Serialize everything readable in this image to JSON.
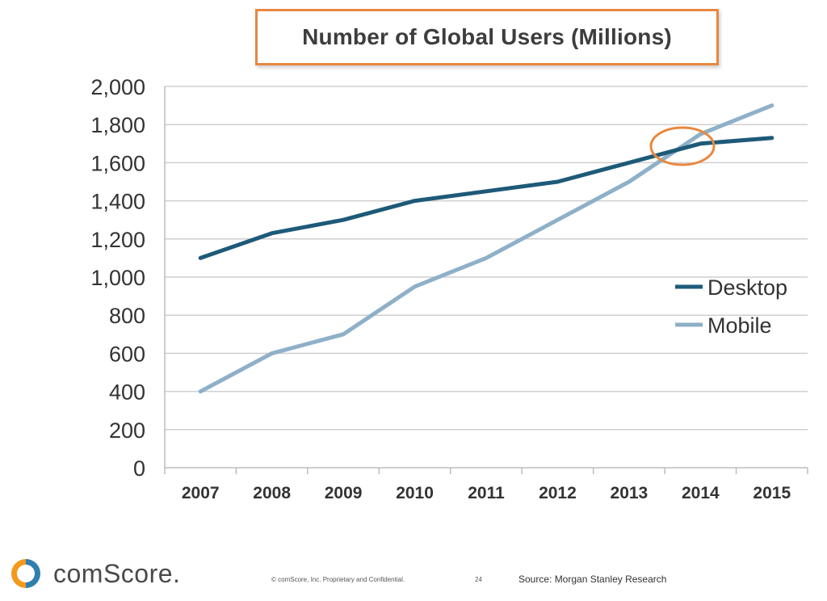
{
  "title": "Number of Global Users (Millions)",
  "colors": {
    "desktop": "#1e5a78",
    "mobile": "#8eb0c8",
    "highlight": "#e9873f",
    "grid": "#cfcfcf"
  },
  "chart_data": {
    "type": "line",
    "title": "Number of Global Users (Millions)",
    "x": [
      "2007",
      "2008",
      "2009",
      "2010",
      "2011",
      "2012",
      "2013",
      "2014",
      "2015"
    ],
    "y_ticks": [
      "0",
      "200",
      "400",
      "600",
      "800",
      "1,000",
      "1,200",
      "1,400",
      "1,600",
      "1,800",
      "2,000"
    ],
    "ylim": [
      0,
      2000
    ],
    "grid": true,
    "legend_position": "right-middle",
    "series": [
      {
        "name": "Desktop",
        "color": "#1e5a78",
        "values": [
          1100,
          1230,
          1300,
          1400,
          1450,
          1500,
          1600,
          1700,
          1730
        ]
      },
      {
        "name": "Mobile",
        "color": "#8eb0c8",
        "values": [
          400,
          600,
          700,
          950,
          1100,
          1300,
          1500,
          1750,
          1900
        ]
      }
    ],
    "annotation": {
      "type": "circle-highlight",
      "x": "2013/2014 crossover",
      "color": "#e9873f"
    }
  },
  "footer": {
    "logo": "comScore.",
    "confidential": "© comScore, Inc.  Proprietary and Confidential.",
    "page_number": "24",
    "source": "Source: Morgan Stanley Research"
  }
}
